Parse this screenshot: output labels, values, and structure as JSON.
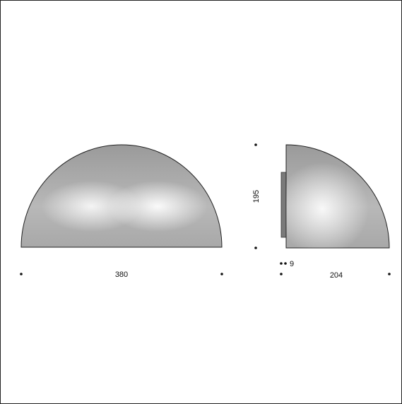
{
  "drawing": {
    "front_view": {
      "width_label": "380"
    },
    "side_view": {
      "height_label": "195",
      "depth_label": "204",
      "mount_label": "9"
    }
  }
}
